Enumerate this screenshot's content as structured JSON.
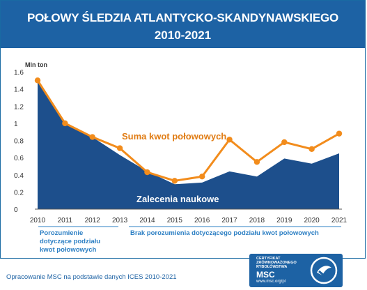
{
  "title_line1": "POŁOWY ŚLEDZIA ATLANTYCKO-SKANDYNAWSKIEGO",
  "title_line2": "2010-2021",
  "footer_text": "Opracowanie MSC na podstawie danych ICES 2010-2021",
  "badge": {
    "line1": "CERTYFIKAT",
    "line2": "ZRÓWNOWAŻONEGO",
    "line3": "RYBOŁÓWSTWA",
    "brand": "MSC",
    "url": "www.msc.org/pl"
  },
  "colors": {
    "header": "#1d62a4",
    "area": "#1d4f8c",
    "line": "#f28c1c",
    "label_blue": "#2e80c4"
  },
  "chart_data": {
    "type": "area",
    "ylabel": "Mln ton",
    "ylim": [
      0,
      1.6
    ],
    "yticks": [
      "0",
      "0.2",
      "0.4",
      "0.6",
      "0.8",
      "1",
      "1.2",
      "1.4",
      "1.6"
    ],
    "x": [
      "2010",
      "2011",
      "2012",
      "2013",
      "2014",
      "2015",
      "2016",
      "2017",
      "2018",
      "2019",
      "2020",
      "2021"
    ],
    "series": [
      {
        "name": "Zalecenia naukowe",
        "kind": "area",
        "values": [
          1.5,
          1.0,
          0.84,
          0.63,
          0.44,
          0.29,
          0.31,
          0.44,
          0.38,
          0.59,
          0.53,
          0.65
        ]
      },
      {
        "name": "Suma kwot połowowych",
        "kind": "line",
        "values": [
          1.5,
          1.0,
          0.84,
          0.71,
          0.43,
          0.33,
          0.38,
          0.81,
          0.55,
          0.78,
          0.7,
          0.88
        ]
      }
    ],
    "annotations": {
      "period1": "Porozumienie dotyczące podziału kwot połowowych",
      "period2": "Brak porozumienia dotyczącego podziału kwot połowowych"
    },
    "grid": false
  }
}
